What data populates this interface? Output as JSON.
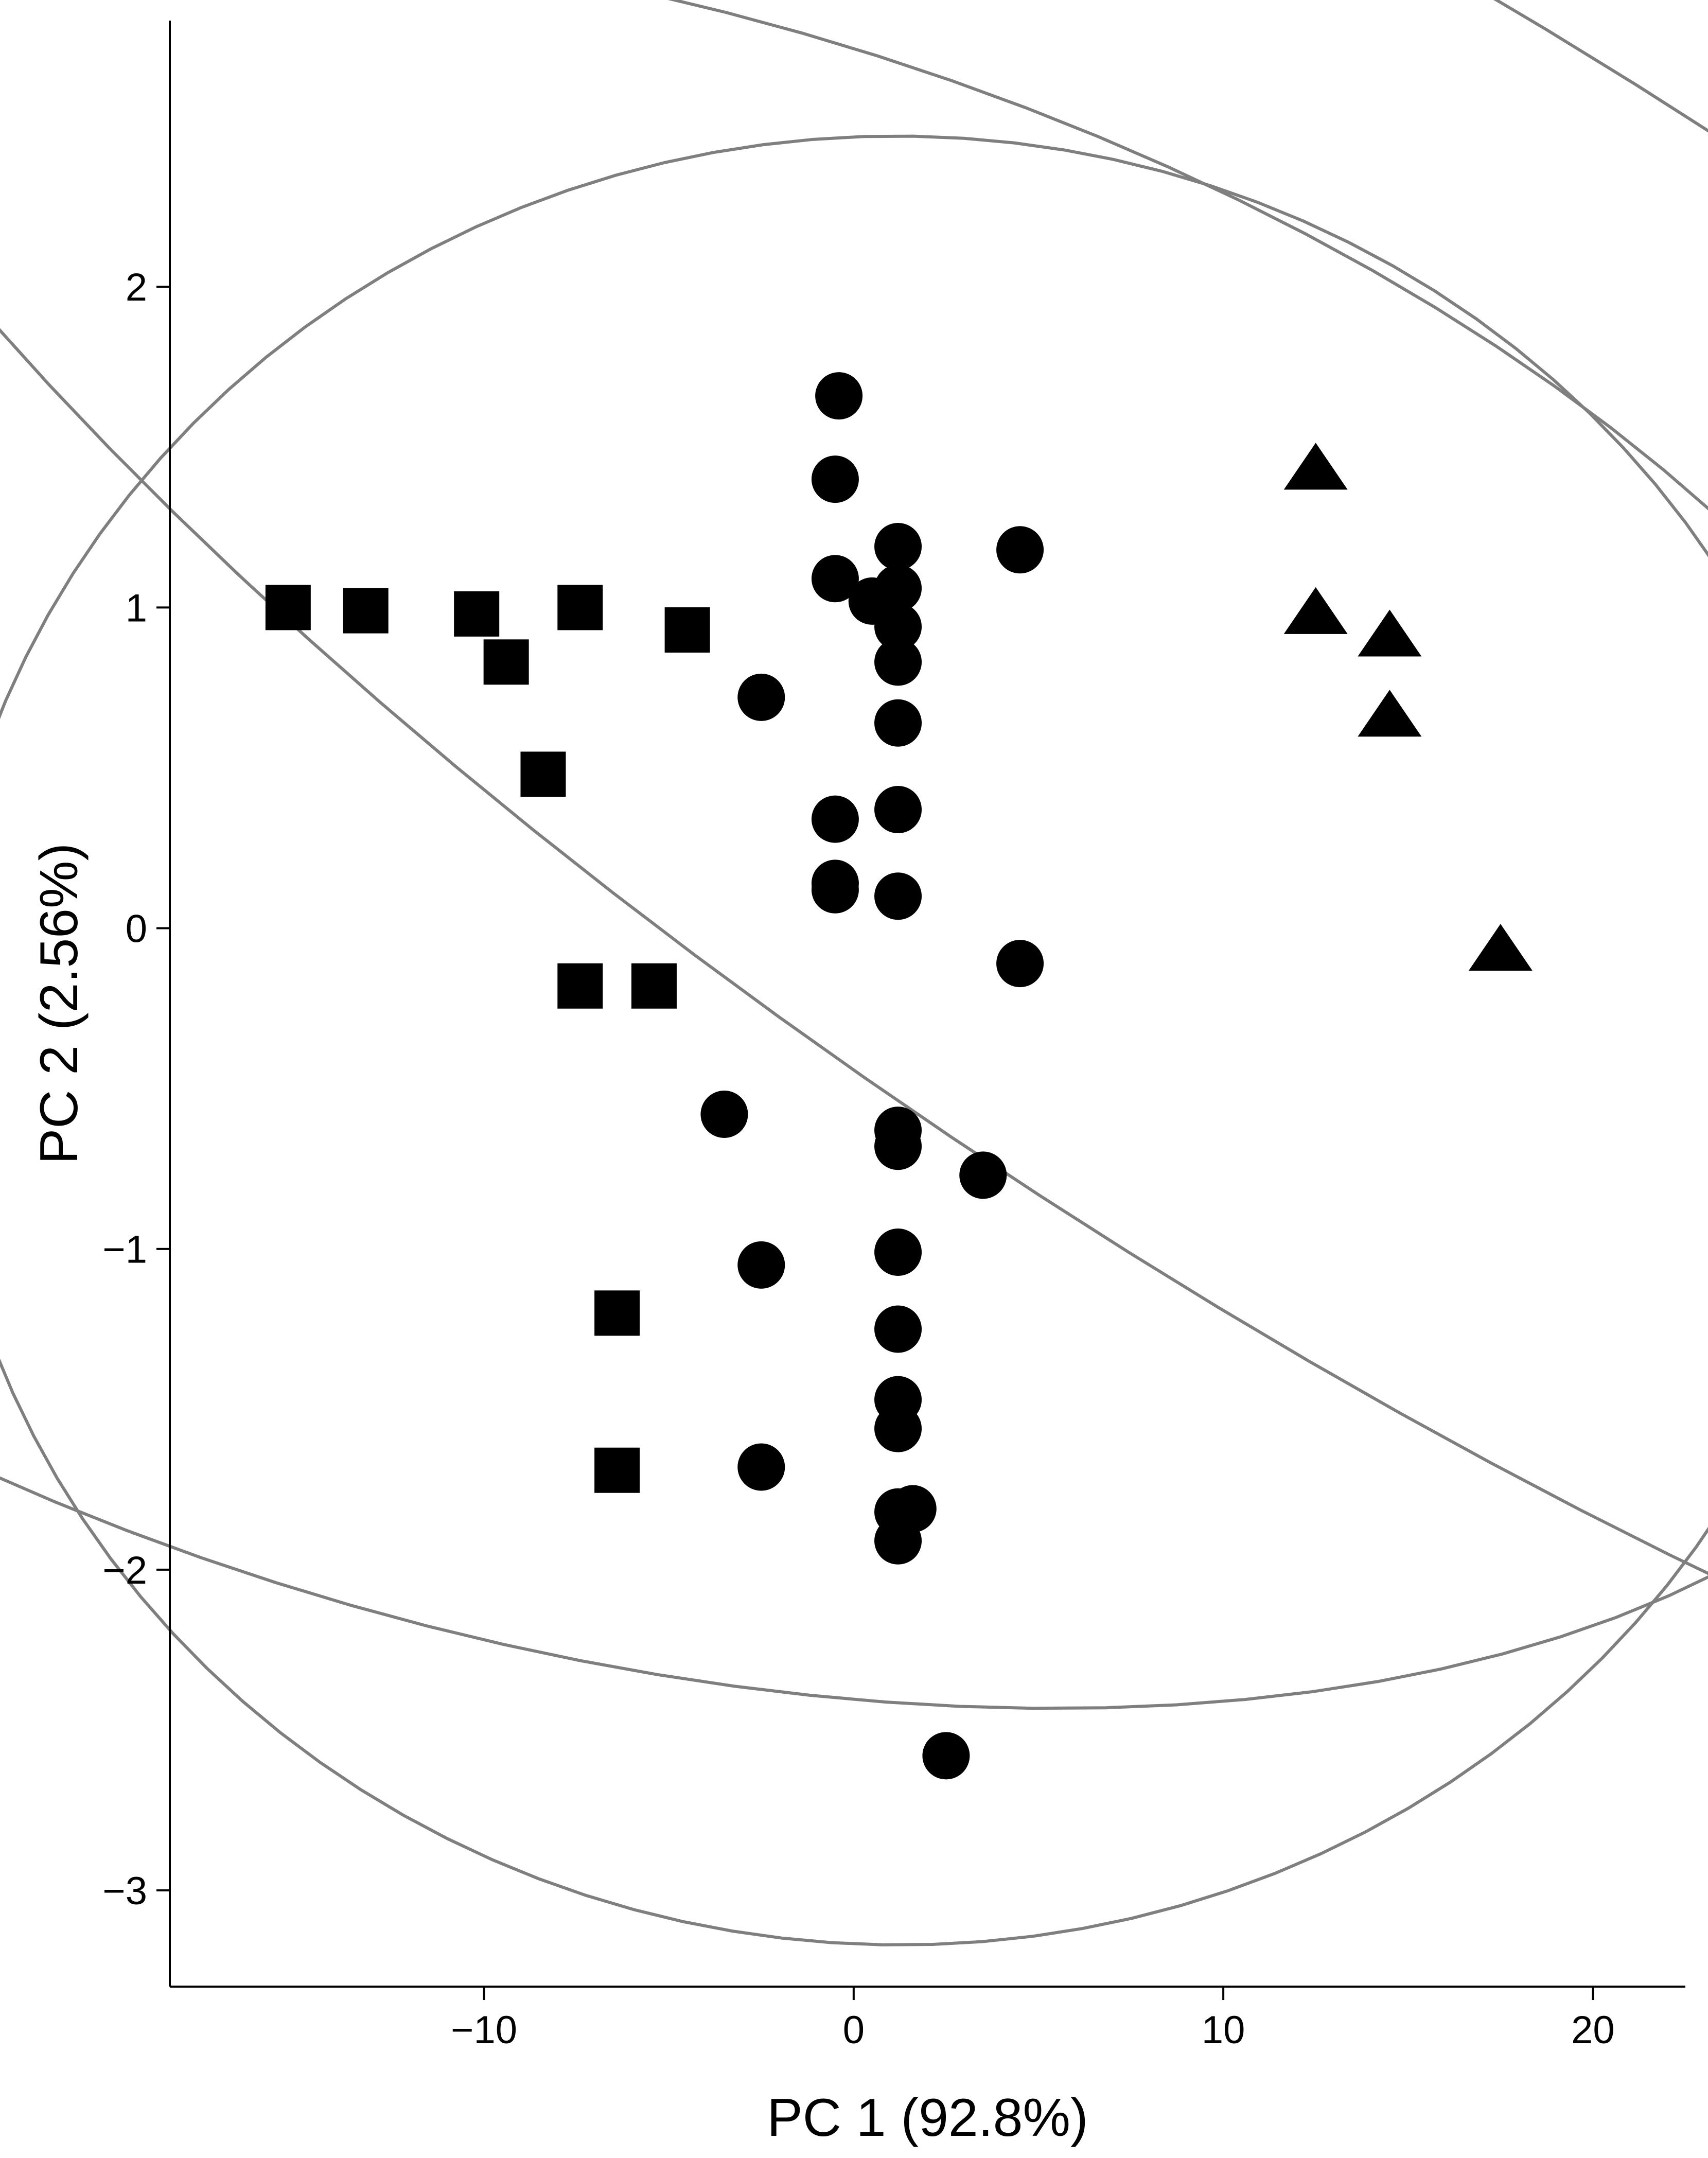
{
  "chart_data": {
    "type": "scatter",
    "title": "",
    "xlabel": "PC 1 (92.8%)",
    "ylabel": "PC 2 (2.56%)",
    "xlim": [
      -18.5,
      22.5
    ],
    "ylim": [
      -3.3,
      2.83
    ],
    "x_ticks": [
      -10,
      0,
      10,
      20
    ],
    "x_tick_labels": [
      "−10",
      "0",
      "10",
      "20"
    ],
    "y_ticks": [
      -3,
      -2,
      -1,
      0,
      1,
      2
    ],
    "y_tick_labels": [
      "−3",
      "−2",
      "−1",
      "0",
      "1",
      "2"
    ],
    "grid": false,
    "legend": "none",
    "colors": {
      "points": "#000000",
      "ellipse": "#7f7f7f",
      "axis": "#000000"
    },
    "series": [
      {
        "shape": "square",
        "points": [
          {
            "x": -15.3,
            "y": 1.0
          },
          {
            "x": -13.2,
            "y": 0.99
          },
          {
            "x": -10.2,
            "y": 0.98
          },
          {
            "x": -9.4,
            "y": 0.83
          },
          {
            "x": -7.4,
            "y": 1.0
          },
          {
            "x": -4.5,
            "y": 0.93
          },
          {
            "x": -8.4,
            "y": 0.48
          },
          {
            "x": -7.4,
            "y": -0.18
          },
          {
            "x": -5.4,
            "y": -0.18
          },
          {
            "x": -6.4,
            "y": -1.2
          },
          {
            "x": -6.4,
            "y": -1.69
          }
        ],
        "ellipse": {
          "cx": -7.5,
          "cy": 0.34,
          "rx": 4.7,
          "ry": 2.55,
          "angle_deg": -16
        }
      },
      {
        "shape": "circle",
        "points": [
          {
            "x": -0.4,
            "y": 1.66
          },
          {
            "x": -0.5,
            "y": 1.4
          },
          {
            "x": -0.5,
            "y": 1.09
          },
          {
            "x": 0.5,
            "y": 1.02
          },
          {
            "x": 1.2,
            "y": 1.19
          },
          {
            "x": 1.2,
            "y": 1.06
          },
          {
            "x": 1.2,
            "y": 0.94
          },
          {
            "x": 1.2,
            "y": 0.83
          },
          {
            "x": 4.5,
            "y": 1.18
          },
          {
            "x": -2.5,
            "y": 0.72
          },
          {
            "x": 1.2,
            "y": 0.64
          },
          {
            "x": -0.5,
            "y": 0.34
          },
          {
            "x": 1.2,
            "y": 0.37
          },
          {
            "x": -0.5,
            "y": 0.14
          },
          {
            "x": -0.5,
            "y": 0.12
          },
          {
            "x": 1.2,
            "y": 0.1
          },
          {
            "x": 4.5,
            "y": -0.11
          },
          {
            "x": -3.5,
            "y": -0.58
          },
          {
            "x": 1.2,
            "y": -0.63
          },
          {
            "x": 1.2,
            "y": -0.68
          },
          {
            "x": 3.5,
            "y": -0.77
          },
          {
            "x": -2.5,
            "y": -1.05
          },
          {
            "x": 1.2,
            "y": -1.01
          },
          {
            "x": 1.2,
            "y": -1.25
          },
          {
            "x": 1.2,
            "y": -1.47
          },
          {
            "x": 1.2,
            "y": -1.56
          },
          {
            "x": -2.5,
            "y": -1.68
          },
          {
            "x": 1.2,
            "y": -1.82
          },
          {
            "x": 1.6,
            "y": -1.81
          },
          {
            "x": 1.2,
            "y": -1.91
          },
          {
            "x": 2.5,
            "y": -2.58
          }
        ],
        "ellipse": {
          "cx": 1.2,
          "cy": -0.35,
          "rx": 3.0,
          "ry": 2.82,
          "angle_deg": -1
        }
      },
      {
        "shape": "triangle",
        "points": [
          {
            "x": 12.5,
            "y": 1.43
          },
          {
            "x": 12.5,
            "y": 0.98
          },
          {
            "x": 14.5,
            "y": 0.91
          },
          {
            "x": 14.5,
            "y": 0.66
          },
          {
            "x": 17.5,
            "y": -0.07
          }
        ],
        "ellipse": {
          "cx": 14.3,
          "cy": 0.81,
          "rx": 6.3,
          "ry": 1.96,
          "angle_deg": -33
        }
      }
    ]
  }
}
